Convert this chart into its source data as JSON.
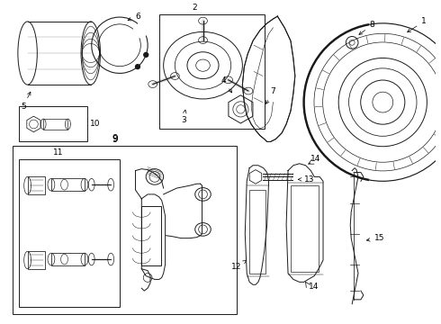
{
  "bg": "#ffffff",
  "lc": "#1a1a1a",
  "fig_w": 4.9,
  "fig_h": 3.6,
  "dpi": 100,
  "label_fs": 6.5
}
